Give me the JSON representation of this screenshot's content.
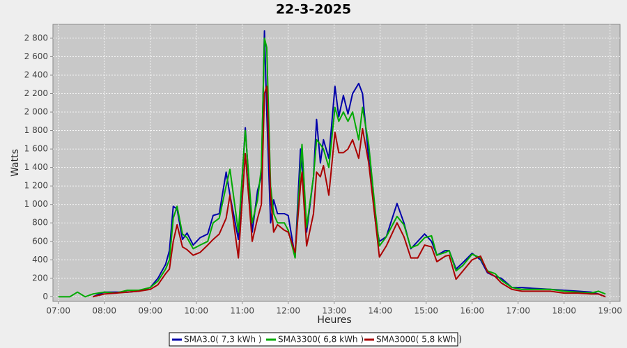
{
  "chart_data": {
    "type": "line",
    "title": "22-3-2025",
    "x_label": "Heures",
    "y_label": "Watts",
    "grid": true,
    "legend_position": "bottom",
    "xlim": [
      "06:53",
      "19:13"
    ],
    "xticks": [
      "07:00",
      "08:00",
      "09:00",
      "10:00",
      "11:00",
      "12:00",
      "13:00",
      "14:00",
      "15:00",
      "16:00",
      "17:00",
      "18:00",
      "19:00"
    ],
    "ylim": [
      -50,
      2950
    ],
    "yticks": [
      0,
      200,
      400,
      600,
      800,
      {
        "value": 1000,
        "label": "1 000"
      },
      {
        "value": 1200,
        "label": "1 200"
      },
      {
        "value": 1400,
        "label": "1 400"
      },
      {
        "value": 1600,
        "label": "1 600"
      },
      {
        "value": 1800,
        "label": "1 800"
      },
      {
        "value": 2000,
        "label": "2 000"
      },
      {
        "value": 2200,
        "label": "2 200"
      },
      {
        "value": 2400,
        "label": "2 400"
      },
      {
        "value": 2600,
        "label": "2 600"
      },
      {
        "value": 2800,
        "label": "2 800"
      }
    ],
    "x": [
      "07:00",
      "07:15",
      "07:25",
      "07:35",
      "07:45",
      "08:00",
      "08:15",
      "08:30",
      "08:45",
      "09:00",
      "09:10",
      "09:20",
      "09:25",
      "09:30",
      "09:35",
      "09:42",
      "09:48",
      "09:56",
      "10:05",
      "10:15",
      "10:22",
      "10:30",
      "10:39",
      "10:44",
      "10:55",
      "11:04",
      "11:13",
      "11:20",
      "11:25",
      "11:29",
      "11:32",
      "11:37",
      "11:41",
      "11:46",
      "11:55",
      "12:00",
      "12:09",
      "12:16",
      "12:18",
      "12:24",
      "12:33",
      "12:37",
      "12:42",
      "12:46",
      "12:53",
      "13:01",
      "13:06",
      "13:12",
      "13:18",
      "13:24",
      "13:32",
      "13:37",
      "13:45",
      "13:54",
      "13:59",
      "14:08",
      "14:22",
      "14:31",
      "14:40",
      "14:49",
      "14:58",
      "15:07",
      "15:14",
      "15:25",
      "15:30",
      "15:39",
      "15:48",
      "16:00",
      "16:11",
      "16:20",
      "16:30",
      "16:38",
      "16:52",
      "17:05",
      "17:20",
      "17:42",
      "18:00",
      "18:18",
      "18:35",
      "18:45",
      "18:54"
    ],
    "series": [
      {
        "name": "SMA3.0( 7,3 kWh )",
        "color": "#0000aa",
        "values": [
          null,
          null,
          null,
          null,
          0,
          50,
          50,
          50,
          60,
          100,
          200,
          350,
          500,
          980,
          950,
          620,
          690,
          560,
          640,
          680,
          880,
          900,
          1350,
          1100,
          620,
          1830,
          700,
          1150,
          1300,
          2880,
          2000,
          800,
          1050,
          900,
          900,
          880,
          430,
          1600,
          1400,
          700,
          1300,
          1920,
          1450,
          1700,
          1500,
          2280,
          1950,
          2180,
          1980,
          2200,
          2310,
          2200,
          1500,
          800,
          600,
          650,
          1010,
          800,
          520,
          600,
          680,
          600,
          450,
          500,
          500,
          300,
          370,
          470,
          400,
          260,
          220,
          200,
          100,
          100,
          90,
          80,
          70,
          60,
          50,
          30,
          0
        ]
      },
      {
        "name": "SMA3300( 6,8 kWh )",
        "color": "#00aa00",
        "values": [
          0,
          0,
          50,
          0,
          30,
          50,
          40,
          70,
          70,
          100,
          170,
          300,
          400,
          850,
          980,
          680,
          640,
          520,
          560,
          600,
          800,
          850,
          1200,
          1380,
          700,
          1800,
          800,
          1050,
          1400,
          2800,
          2700,
          1200,
          900,
          800,
          800,
          720,
          420,
          1400,
          1650,
          750,
          1300,
          1700,
          1650,
          1600,
          1400,
          2050,
          1900,
          2000,
          1900,
          2000,
          1700,
          2050,
          1650,
          900,
          550,
          650,
          870,
          780,
          530,
          560,
          640,
          660,
          450,
          480,
          500,
          280,
          340,
          460,
          420,
          280,
          250,
          180,
          100,
          80,
          80,
          80,
          60,
          50,
          40,
          60,
          30
        ]
      },
      {
        "name": "SMA3000( 5,8 kWh )",
        "color": "#aa0000",
        "values": [
          null,
          null,
          null,
          null,
          0,
          30,
          40,
          50,
          60,
          80,
          130,
          250,
          300,
          600,
          780,
          540,
          510,
          450,
          480,
          560,
          620,
          680,
          850,
          1100,
          420,
          1550,
          600,
          850,
          1000,
          2200,
          2280,
          1100,
          700,
          780,
          720,
          700,
          480,
          1200,
          1350,
          550,
          900,
          1350,
          1300,
          1420,
          1100,
          1780,
          1560,
          1560,
          1600,
          1700,
          1500,
          1820,
          1450,
          800,
          430,
          550,
          800,
          650,
          420,
          420,
          560,
          540,
          380,
          440,
          450,
          190,
          280,
          400,
          440,
          270,
          220,
          150,
          80,
          60,
          60,
          60,
          40,
          40,
          30,
          30,
          0
        ]
      }
    ]
  }
}
